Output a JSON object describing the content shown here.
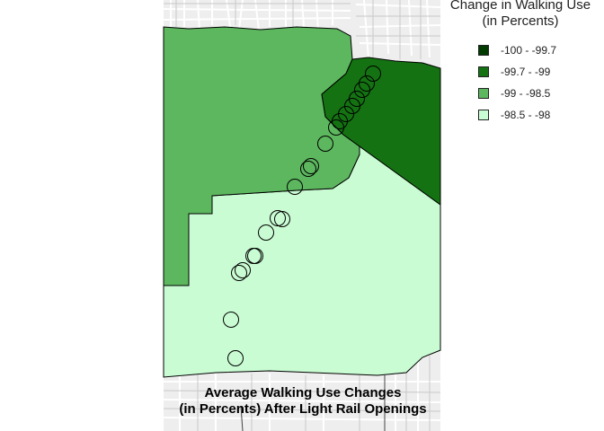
{
  "legend": {
    "title_line1": "Change in Walking Use",
    "title_line2": "(in Percents)",
    "items": [
      {
        "label": "-100 - -99.7",
        "color": "#003c00"
      },
      {
        "label": "-99.7 - -99",
        "color": "#147212"
      },
      {
        "label": "-99 - -98.5",
        "color": "#5db75f"
      },
      {
        "label": "-98.5 - -98",
        "color": "#c9fcd3"
      }
    ]
  },
  "map": {
    "title_line1": "Average Walking Use Changes",
    "title_line2": "(in Percents) After Light Rail Openings",
    "basemap_color": "#eeeeee",
    "boundary_color": "#000000",
    "station_marker": "open-circle"
  }
}
